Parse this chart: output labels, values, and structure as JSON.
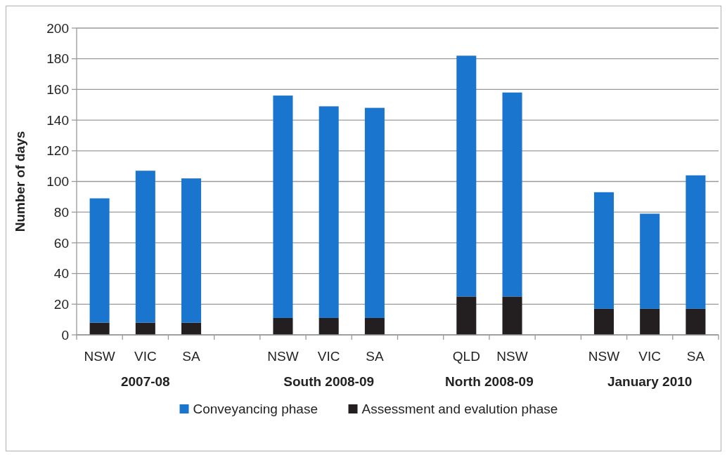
{
  "chart_data": {
    "type": "bar",
    "ylabel": "Number of days",
    "categories": [
      "NSW",
      "VIC",
      "SA",
      null,
      "NSW",
      "VIC",
      "SA",
      null,
      "QLD",
      "NSW",
      null,
      "NSW",
      "VIC",
      "SA"
    ],
    "series": [
      {
        "name": "Assessment and evalution phase",
        "color": "#231f20",
        "values": [
          8,
          8,
          8,
          null,
          11,
          11,
          11,
          null,
          25,
          25,
          null,
          17,
          17,
          17
        ]
      },
      {
        "name": "Conveyancing phase",
        "color": "#1a75cf",
        "values": [
          81,
          99,
          94,
          null,
          145,
          138,
          137,
          null,
          157,
          133,
          null,
          76,
          62,
          87
        ]
      }
    ],
    "stacked": true,
    "ylim": [
      0,
      200
    ],
    "yticks": [
      0,
      20,
      40,
      60,
      80,
      100,
      120,
      140,
      160,
      180,
      200
    ],
    "grid": "y",
    "legend": "bottom",
    "annotations": [
      "2007-08",
      "South 2008-09",
      "North 2008-09",
      "January 2010"
    ]
  }
}
